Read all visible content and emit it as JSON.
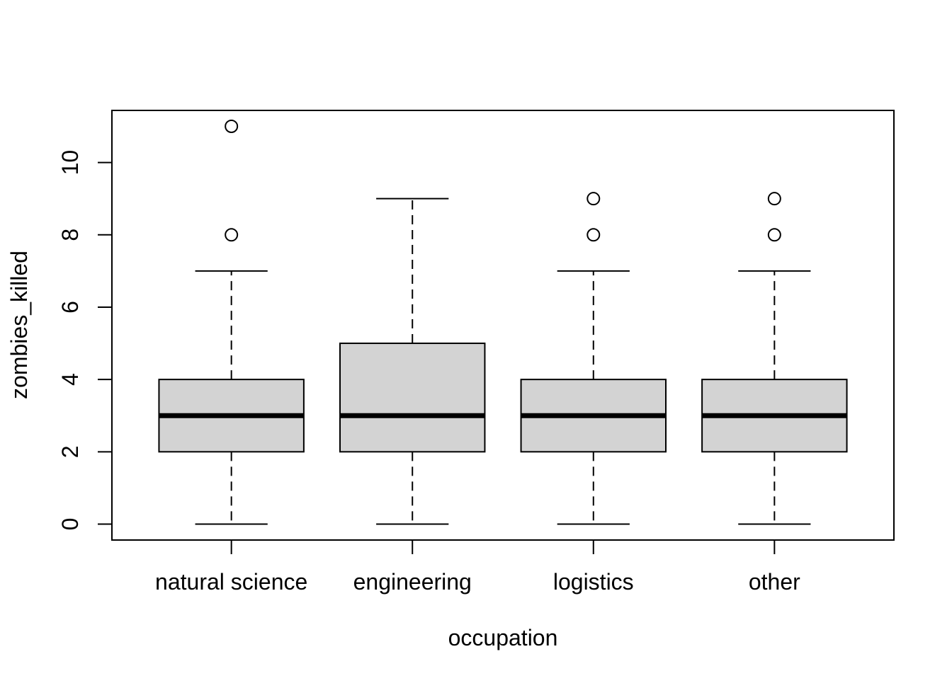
{
  "figure": {
    "background": "#ffffff",
    "foreground": "#000000"
  },
  "chart_data": {
    "type": "boxplot",
    "title": "",
    "xlabel": "occupation",
    "ylabel": "zombies_killed",
    "categories": [
      "natural science",
      "engineering",
      "logistics",
      "other"
    ],
    "yticks": [
      0,
      2,
      4,
      6,
      8,
      10
    ],
    "ylim": [
      0,
      11
    ],
    "grid": false,
    "legend": "none",
    "colors": {
      "box_fill": "#d3d3d3",
      "line": "#000000",
      "background": "#ffffff"
    },
    "boxes": [
      {
        "label": "natural science",
        "whisker_low": 0,
        "q1": 2,
        "median": 3,
        "q3": 4,
        "whisker_high": 7,
        "outliers": [
          8,
          11
        ]
      },
      {
        "label": "engineering",
        "whisker_low": 0,
        "q1": 2,
        "median": 3,
        "q3": 5,
        "whisker_high": 9,
        "outliers": []
      },
      {
        "label": "logistics",
        "whisker_low": 0,
        "q1": 2,
        "median": 3,
        "q3": 4,
        "whisker_high": 7,
        "outliers": [
          8,
          9
        ]
      },
      {
        "label": "other",
        "whisker_low": 0,
        "q1": 2,
        "median": 3,
        "q3": 4,
        "whisker_high": 7,
        "outliers": [
          8,
          9
        ]
      }
    ]
  }
}
